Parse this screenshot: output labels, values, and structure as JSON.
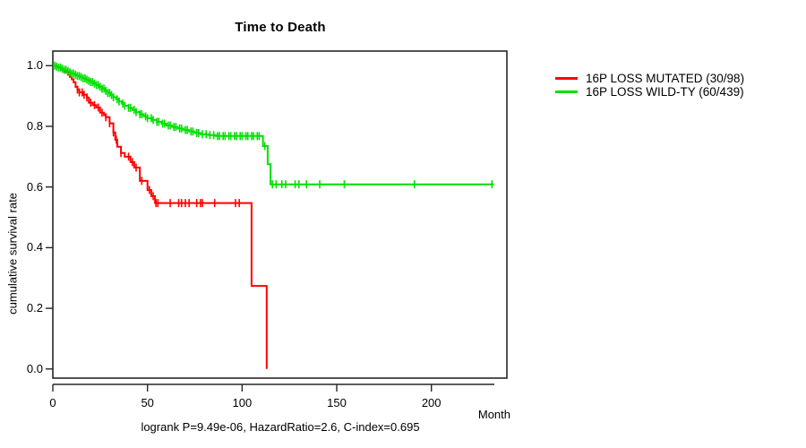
{
  "title": "Time to Death",
  "axes": {
    "y_label": "cumulative survival rate",
    "x_label": "Month"
  },
  "annotation": "logrank P=9.49e-06, HazardRatio=2.6, C-index=0.695",
  "legend": {
    "items": [
      {
        "label": "16P LOSS MUTATED (30/98)",
        "color": "#FF0000"
      },
      {
        "label": "16P LOSS WILD-TY (60/439)",
        "color": "#00E000"
      }
    ]
  },
  "chart_data": {
    "type": "line",
    "subtype": "kaplan-meier-step",
    "title": "Time to Death",
    "xlabel": "Month",
    "ylabel": "cumulative survival rate",
    "xlim": [
      0,
      240
    ],
    "ylim": [
      0.0,
      1.0
    ],
    "x_ticks": [
      0,
      50,
      100,
      150,
      200
    ],
    "y_ticks": [
      1.0,
      0.8,
      0.6,
      0.4,
      0.2,
      0.0
    ],
    "y_tick_labels": [
      "1.0",
      "0.8",
      "0.6",
      "0.4",
      "0.2",
      "0.0"
    ],
    "grid": false,
    "legend_position": "right-outside",
    "annotation": "logrank P=9.49e-06, HazardRatio=2.6, C-index=0.695",
    "series": [
      {
        "name": "16P LOSS MUTATED (30/98)",
        "color": "#FF0000",
        "steps": [
          [
            0,
            1.0
          ],
          [
            2,
            0.995
          ],
          [
            4,
            0.988
          ],
          [
            6,
            0.98
          ],
          [
            8,
            0.97
          ],
          [
            9,
            0.963
          ],
          [
            10,
            0.955
          ],
          [
            11,
            0.945
          ],
          [
            12,
            0.93
          ],
          [
            13,
            0.921
          ],
          [
            14,
            0.912
          ],
          [
            16,
            0.904
          ],
          [
            18,
            0.895
          ],
          [
            19,
            0.878
          ],
          [
            21,
            0.87
          ],
          [
            23,
            0.862
          ],
          [
            25,
            0.845
          ],
          [
            27,
            0.837
          ],
          [
            28,
            0.83
          ],
          [
            30,
            0.81
          ],
          [
            32,
            0.78
          ],
          [
            33,
            0.756
          ],
          [
            34,
            0.733
          ],
          [
            36,
            0.712
          ],
          [
            38,
            0.7
          ],
          [
            41,
            0.682
          ],
          [
            43,
            0.664
          ],
          [
            46,
            0.62
          ],
          [
            50,
            0.59
          ],
          [
            52,
            0.57
          ],
          [
            54,
            0.547
          ],
          [
            105,
            0.274
          ],
          [
            113,
            0.0
          ]
        ],
        "censor_months": [
          13,
          14,
          15.5,
          16.5,
          18,
          20,
          22,
          24,
          26,
          28,
          30,
          32,
          33.5,
          36,
          40,
          42,
          44,
          47,
          51,
          53,
          54.5,
          55.5,
          62,
          66.5,
          68,
          70,
          72,
          76,
          78,
          79,
          85.5,
          96.5,
          98.5
        ]
      },
      {
        "name": "16P LOSS WILD-TY (60/439)",
        "color": "#00E000",
        "steps": [
          [
            0,
            1.0
          ],
          [
            1.5,
            0.997
          ],
          [
            3,
            0.994
          ],
          [
            4.5,
            0.99
          ],
          [
            6,
            0.986
          ],
          [
            7.5,
            0.982
          ],
          [
            9,
            0.978
          ],
          [
            10,
            0.974
          ],
          [
            11.5,
            0.97
          ],
          [
            13,
            0.966
          ],
          [
            14.5,
            0.962
          ],
          [
            16,
            0.958
          ],
          [
            17.5,
            0.954
          ],
          [
            19,
            0.95
          ],
          [
            20,
            0.946
          ],
          [
            21.5,
            0.941
          ],
          [
            23,
            0.936
          ],
          [
            24.5,
            0.93
          ],
          [
            26,
            0.924
          ],
          [
            27.5,
            0.917
          ],
          [
            29,
            0.91
          ],
          [
            30.5,
            0.903
          ],
          [
            32,
            0.896
          ],
          [
            33.5,
            0.889
          ],
          [
            35,
            0.882
          ],
          [
            36.5,
            0.875
          ],
          [
            38,
            0.868
          ],
          [
            40,
            0.861
          ],
          [
            42,
            0.854
          ],
          [
            44,
            0.847
          ],
          [
            46,
            0.84
          ],
          [
            48,
            0.833
          ],
          [
            50,
            0.827
          ],
          [
            52.5,
            0.821
          ],
          [
            55,
            0.815
          ],
          [
            57.5,
            0.809
          ],
          [
            60,
            0.803
          ],
          [
            63,
            0.798
          ],
          [
            66,
            0.793
          ],
          [
            69,
            0.788
          ],
          [
            72,
            0.783
          ],
          [
            75,
            0.778
          ],
          [
            78,
            0.774
          ],
          [
            82,
            0.771
          ],
          [
            86,
            0.768
          ],
          [
            111,
            0.735
          ],
          [
            113.5,
            0.675
          ],
          [
            115,
            0.609
          ],
          [
            233,
            0.609
          ]
        ],
        "censor_months": [
          1,
          2,
          3,
          4,
          5,
          6,
          7,
          8,
          9,
          10,
          11,
          12,
          13,
          14,
          15,
          16,
          17,
          18,
          19,
          20,
          21,
          22,
          23,
          24,
          25,
          26,
          27,
          28,
          29,
          30,
          31,
          32,
          34,
          35,
          37,
          38,
          40,
          41,
          43,
          44,
          46,
          47,
          49,
          50,
          52,
          53,
          55,
          56,
          58,
          59,
          61,
          62,
          64,
          65,
          67,
          68,
          70,
          71,
          73,
          74,
          76,
          77,
          79,
          81,
          83,
          85,
          87,
          88,
          90,
          91,
          93,
          94,
          96,
          97,
          99,
          100,
          102,
          103,
          105,
          106,
          108,
          109,
          112,
          116,
          118,
          121,
          123,
          128,
          130,
          134,
          141,
          154,
          191,
          232
        ]
      }
    ]
  }
}
